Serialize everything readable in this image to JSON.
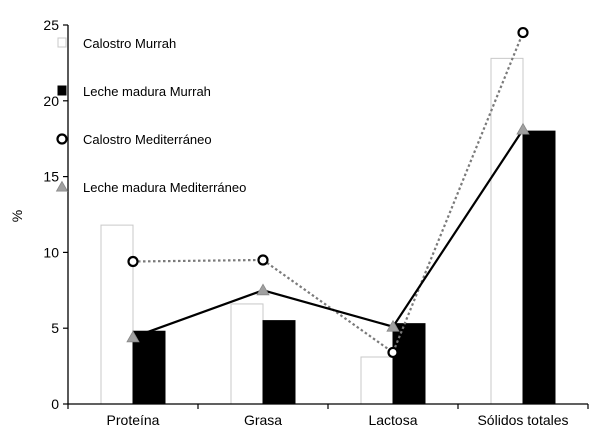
{
  "chart_data": {
    "type": "bar",
    "categories": [
      "Proteína",
      "Grasa",
      "Lactosa",
      "Sólidos totales"
    ],
    "ylabel": "%",
    "ylim": [
      0,
      25
    ],
    "yticks": [
      0,
      5,
      10,
      15,
      20,
      25
    ],
    "legend_position": "top-left",
    "series": [
      {
        "name": "Calostro Murrah",
        "kind": "bar",
        "values": [
          11.8,
          6.6,
          3.1,
          22.8
        ],
        "color": "#ffffff",
        "stroke": "#c8c8c8"
      },
      {
        "name": "Leche madura Murrah",
        "kind": "bar",
        "values": [
          4.8,
          5.5,
          5.3,
          18.0
        ],
        "color": "#000000",
        "stroke": "#000000"
      },
      {
        "name": "Calostro Mediterráneo",
        "kind": "line",
        "marker": "circle",
        "line_style": "dotted",
        "values": [
          9.4,
          9.5,
          3.4,
          24.5
        ],
        "color": "#7a7a7a",
        "marker_color": "#000000"
      },
      {
        "name": "Leche madura Mediterráneo",
        "kind": "line",
        "marker": "triangle",
        "line_style": "solid",
        "values": [
          4.4,
          7.5,
          5.1,
          18.1
        ],
        "color": "#000000",
        "marker_color": "#a0a0a0"
      }
    ]
  }
}
